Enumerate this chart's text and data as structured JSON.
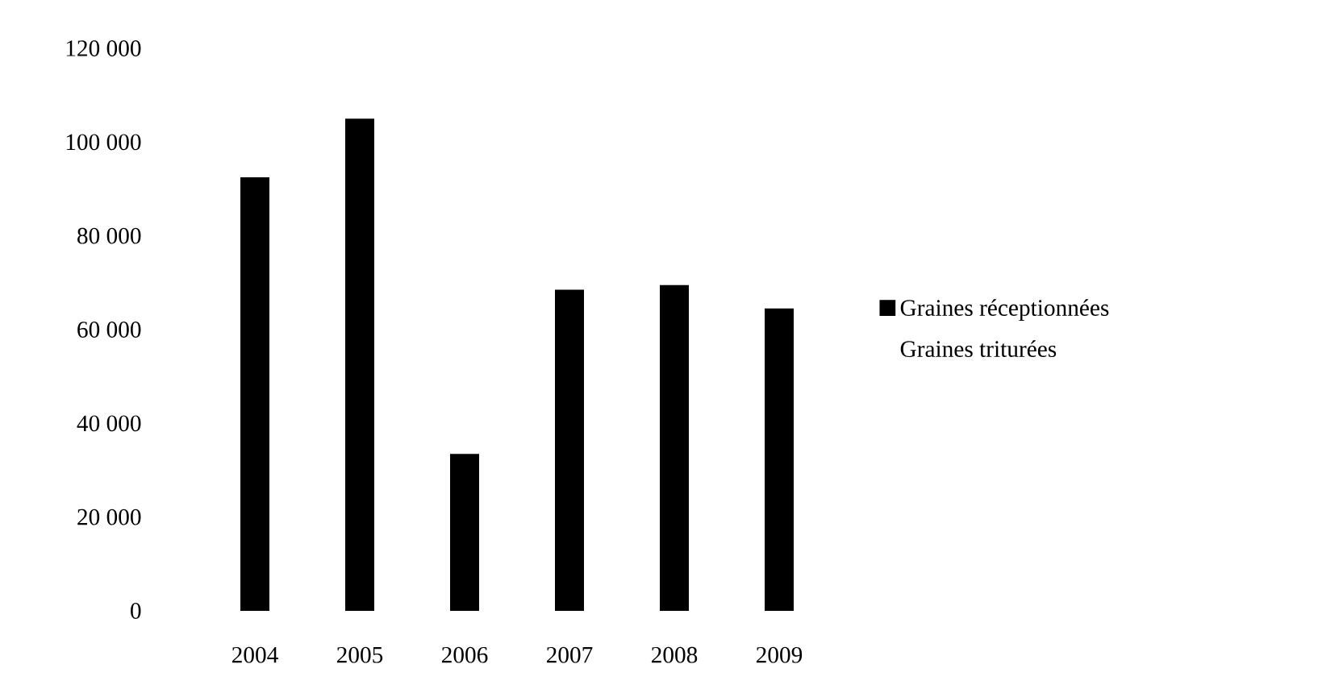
{
  "chart_data": {
    "type": "bar",
    "categories": [
      "2004",
      "2005",
      "2006",
      "2007",
      "2008",
      "2009"
    ],
    "series": [
      {
        "name": "Graines réceptionnées",
        "color": "#000000",
        "values": [
          92500,
          105000,
          33500,
          68500,
          69500,
          64500
        ]
      },
      {
        "name": "Graines triturées",
        "values": [
          null,
          null,
          null,
          null,
          null,
          null
        ]
      }
    ],
    "ylim": [
      0,
      120000
    ],
    "yticks": [
      {
        "value": 0,
        "label": "0"
      },
      {
        "value": 20000,
        "label": "20 000"
      },
      {
        "value": 40000,
        "label": "40 000"
      },
      {
        "value": 60000,
        "label": "60 000"
      },
      {
        "value": 80000,
        "label": "80 000"
      },
      {
        "value": 100000,
        "label": "100 000"
      },
      {
        "value": 120000,
        "label": "120 000"
      }
    ],
    "grid": false,
    "legend": "right"
  }
}
